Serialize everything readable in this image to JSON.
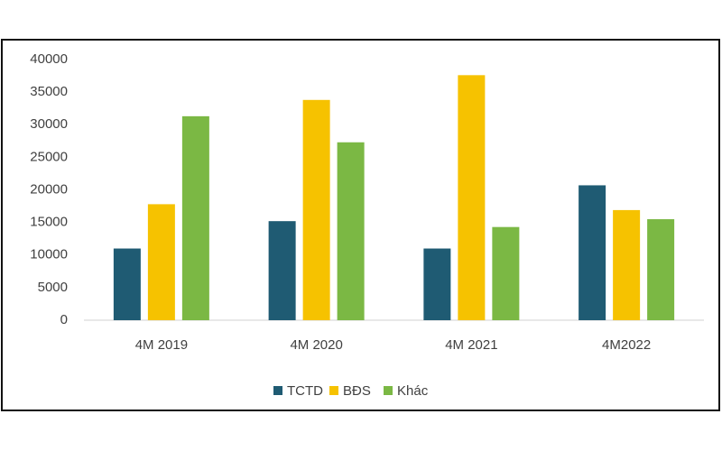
{
  "chart_data": {
    "type": "bar",
    "categories": [
      "4M 2019",
      "4M 2020",
      "4M 2021",
      "4M2022"
    ],
    "series": [
      {
        "name": "TCTD",
        "color": "#1f5b73",
        "values": [
          11000,
          15200,
          11000,
          20700
        ]
      },
      {
        "name": "BĐS",
        "color": "#f6c200",
        "values": [
          17800,
          33800,
          37600,
          16900
        ]
      },
      {
        "name": "Khác",
        "color": "#7bb844",
        "values": [
          31300,
          27300,
          14300,
          15500
        ]
      }
    ],
    "ylim": [
      0,
      40000
    ],
    "yticks": [
      0,
      5000,
      10000,
      15000,
      20000,
      25000,
      30000,
      35000,
      40000
    ],
    "grid": false,
    "legend": "bottom"
  }
}
